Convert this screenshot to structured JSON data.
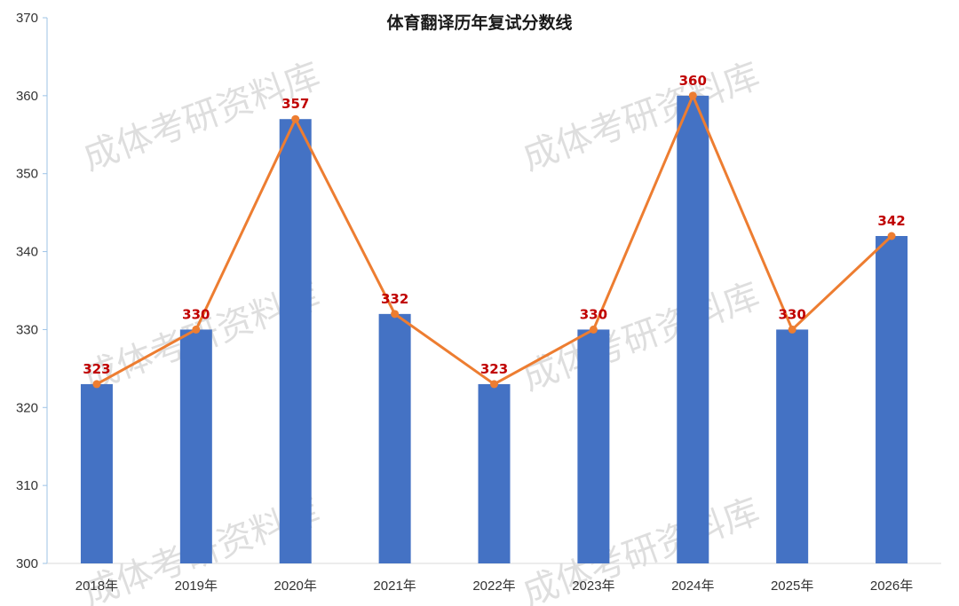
{
  "chart_data": {
    "type": "bar",
    "title": "体育翻译历年复试分数线",
    "categories": [
      "2018年",
      "2019年",
      "2020年",
      "2021年",
      "2022年",
      "2023年",
      "2024年",
      "2025年",
      "2026年"
    ],
    "series": [
      {
        "type": "bar",
        "values": [
          323,
          330,
          357,
          332,
          323,
          330,
          360,
          330,
          342
        ]
      },
      {
        "type": "line",
        "values": [
          323,
          330,
          357,
          332,
          323,
          330,
          360,
          330,
          342
        ]
      }
    ],
    "data_labels": [
      "323",
      "330",
      "357",
      "332",
      "323",
      "330",
      "360",
      "330",
      "342"
    ],
    "yticks": [
      "300",
      "310",
      "320",
      "330",
      "340",
      "350",
      "360",
      "370"
    ],
    "ylim": [
      300,
      370
    ],
    "grid": false,
    "colors": {
      "bar": "#4472c4",
      "line": "#ed7d31",
      "label": "#c00000",
      "axis": "#9dc3e6"
    }
  },
  "watermark": {
    "text": "成体考研资料库"
  }
}
